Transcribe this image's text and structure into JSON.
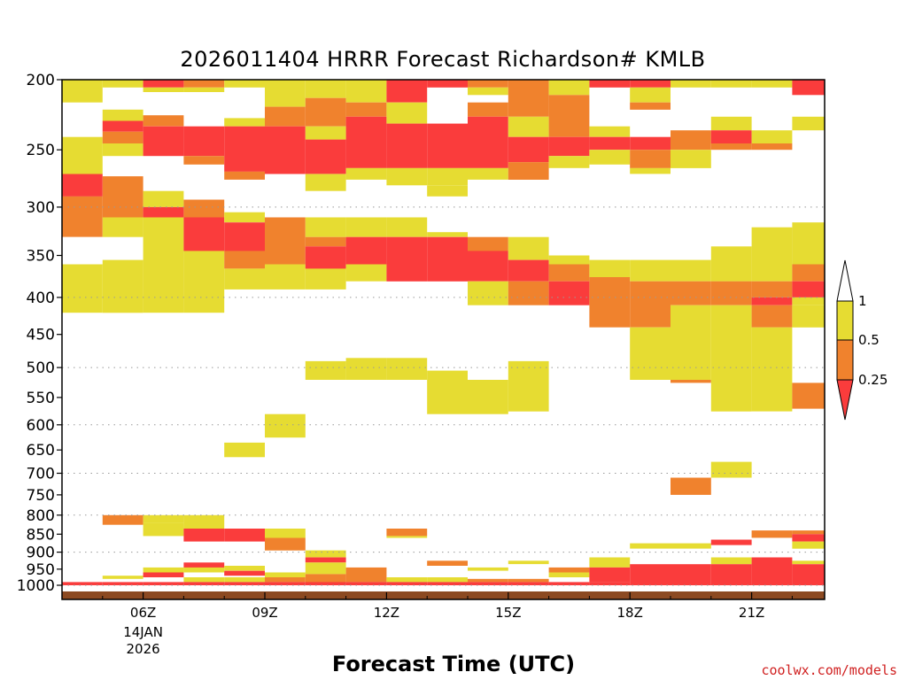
{
  "chart_data": {
    "type": "heatmap",
    "title": "2026011404 HRRR Forecast Richardson# KMLB",
    "xlabel": "Forecast Time (UTC)",
    "ylabel": "",
    "credit": "coolwx.com/models",
    "y_scale": "log-pressure",
    "y_range_hPa": [
      1000,
      200
    ],
    "x_range_hours": [
      4.0,
      22.8
    ],
    "y_ticks": [
      200,
      250,
      300,
      350,
      400,
      450,
      500,
      550,
      600,
      650,
      700,
      750,
      800,
      850,
      900,
      950,
      1000
    ],
    "x_ticks": [
      {
        "hour": 6,
        "label": "06Z",
        "sub1": "14JAN",
        "sub2": "2026"
      },
      {
        "hour": 9,
        "label": "09Z",
        "sub1": "",
        "sub2": ""
      },
      {
        "hour": 12,
        "label": "12Z",
        "sub1": "",
        "sub2": ""
      },
      {
        "hour": 15,
        "label": "15Z",
        "sub1": "",
        "sub2": ""
      },
      {
        "hour": 18,
        "label": "18Z",
        "sub1": "",
        "sub2": ""
      },
      {
        "hour": 21,
        "label": "21Z",
        "sub1": "",
        "sub2": ""
      }
    ],
    "dotted_grid_levels": [
      300,
      400,
      500,
      600,
      700,
      800,
      900,
      1000
    ],
    "legend": {
      "placement": "right",
      "labels": [
        "1",
        "0.5",
        "0.25"
      ],
      "bins": [
        {
          "range": ">1",
          "color": "#ffffff"
        },
        {
          "range": "0.5-1",
          "color": "#e6dc32"
        },
        {
          "range": "0.25-0.5",
          "color": "#f0822d"
        },
        {
          "range": "<0.25",
          "color": "#fa3c3c"
        }
      ]
    },
    "colors": {
      "1": "#e6dc32",
      "2": "#f0822d",
      "3": "#fa3c3c",
      "ground": "#8c4a22"
    },
    "surface_fill_hPa": 1020,
    "columns": [
      {
        "hour": 4.0,
        "cells": [
          [
            200,
            215,
            1
          ],
          [
            240,
            270,
            1
          ],
          [
            270,
            290,
            3
          ],
          [
            290,
            330,
            2
          ],
          [
            360,
            420,
            1
          ],
          [
            990,
            1000,
            3
          ]
        ]
      },
      {
        "hour": 5.0,
        "cells": [
          [
            200,
            205,
            1
          ],
          [
            220,
            228,
            1
          ],
          [
            228,
            236,
            3
          ],
          [
            236,
            245,
            2
          ],
          [
            245,
            255,
            1
          ],
          [
            272,
            310,
            2
          ],
          [
            310,
            330,
            1
          ],
          [
            355,
            420,
            1
          ],
          [
            800,
            825,
            2
          ],
          [
            970,
            980,
            1
          ],
          [
            990,
            1000,
            3
          ]
        ]
      },
      {
        "hour": 6.0,
        "cells": [
          [
            200,
            205,
            3
          ],
          [
            205,
            208,
            1
          ],
          [
            224,
            232,
            2
          ],
          [
            232,
            255,
            3
          ],
          [
            285,
            300,
            1
          ],
          [
            300,
            310,
            3
          ],
          [
            310,
            345,
            1
          ],
          [
            345,
            420,
            1
          ],
          [
            800,
            820,
            1
          ],
          [
            820,
            855,
            1
          ],
          [
            945,
            960,
            1
          ],
          [
            960,
            975,
            3
          ],
          [
            990,
            1000,
            3
          ]
        ]
      },
      {
        "hour": 7.0,
        "cells": [
          [
            200,
            205,
            2
          ],
          [
            205,
            208,
            1
          ],
          [
            232,
            255,
            3
          ],
          [
            255,
            262,
            2
          ],
          [
            293,
            310,
            2
          ],
          [
            310,
            345,
            3
          ],
          [
            345,
            420,
            1
          ],
          [
            800,
            835,
            1
          ],
          [
            835,
            870,
            3
          ],
          [
            930,
            945,
            3
          ],
          [
            945,
            960,
            1
          ],
          [
            975,
            990,
            1
          ],
          [
            990,
            1000,
            3
          ]
        ]
      },
      {
        "hour": 8.0,
        "cells": [
          [
            200,
            205,
            1
          ],
          [
            226,
            232,
            1
          ],
          [
            232,
            268,
            3
          ],
          [
            268,
            275,
            2
          ],
          [
            305,
            315,
            1
          ],
          [
            315,
            345,
            3
          ],
          [
            345,
            365,
            2
          ],
          [
            365,
            390,
            1
          ],
          [
            635,
            665,
            1
          ],
          [
            835,
            870,
            3
          ],
          [
            940,
            955,
            1
          ],
          [
            955,
            970,
            3
          ],
          [
            975,
            990,
            1
          ],
          [
            990,
            1000,
            3
          ]
        ]
      },
      {
        "hour": 9.0,
        "cells": [
          [
            200,
            218,
            1
          ],
          [
            218,
            232,
            2
          ],
          [
            232,
            270,
            3
          ],
          [
            310,
            345,
            2
          ],
          [
            345,
            360,
            2
          ],
          [
            360,
            390,
            1
          ],
          [
            580,
            625,
            1
          ],
          [
            835,
            860,
            1
          ],
          [
            860,
            895,
            2
          ],
          [
            960,
            975,
            1
          ],
          [
            975,
            990,
            2
          ],
          [
            990,
            1000,
            3
          ]
        ]
      },
      {
        "hour": 10.0,
        "cells": [
          [
            200,
            212,
            1
          ],
          [
            212,
            232,
            2
          ],
          [
            232,
            242,
            1
          ],
          [
            242,
            270,
            3
          ],
          [
            270,
            285,
            1
          ],
          [
            310,
            330,
            1
          ],
          [
            330,
            340,
            2
          ],
          [
            340,
            365,
            3
          ],
          [
            365,
            390,
            1
          ],
          [
            490,
            520,
            1
          ],
          [
            895,
            915,
            1
          ],
          [
            915,
            930,
            3
          ],
          [
            930,
            965,
            1
          ],
          [
            965,
            990,
            2
          ],
          [
            990,
            1000,
            3
          ]
        ]
      },
      {
        "hour": 11.0,
        "cells": [
          [
            200,
            215,
            1
          ],
          [
            215,
            225,
            2
          ],
          [
            225,
            265,
            3
          ],
          [
            265,
            275,
            1
          ],
          [
            310,
            330,
            1
          ],
          [
            330,
            360,
            3
          ],
          [
            360,
            380,
            1
          ],
          [
            485,
            520,
            1
          ],
          [
            945,
            990,
            2
          ],
          [
            990,
            1000,
            3
          ]
        ]
      },
      {
        "hour": 12.0,
        "cells": [
          [
            200,
            215,
            3
          ],
          [
            215,
            230,
            1
          ],
          [
            230,
            265,
            3
          ],
          [
            265,
            280,
            1
          ],
          [
            310,
            330,
            1
          ],
          [
            330,
            380,
            3
          ],
          [
            485,
            520,
            1
          ],
          [
            835,
            855,
            2
          ],
          [
            855,
            860,
            1
          ],
          [
            975,
            990,
            1
          ],
          [
            990,
            1000,
            3
          ]
        ]
      },
      {
        "hour": 13.0,
        "cells": [
          [
            200,
            205,
            3
          ],
          [
            230,
            265,
            3
          ],
          [
            265,
            280,
            1
          ],
          [
            280,
            290,
            1
          ],
          [
            325,
            330,
            1
          ],
          [
            330,
            380,
            3
          ],
          [
            505,
            580,
            1
          ],
          [
            925,
            940,
            2
          ],
          [
            975,
            990,
            1
          ],
          [
            990,
            1000,
            3
          ]
        ]
      },
      {
        "hour": 14.0,
        "cells": [
          [
            200,
            205,
            2
          ],
          [
            205,
            210,
            1
          ],
          [
            215,
            225,
            2
          ],
          [
            225,
            265,
            3
          ],
          [
            265,
            275,
            1
          ],
          [
            330,
            345,
            2
          ],
          [
            345,
            380,
            3
          ],
          [
            380,
            410,
            1
          ],
          [
            520,
            580,
            1
          ],
          [
            945,
            955,
            1
          ],
          [
            980,
            990,
            2
          ],
          [
            990,
            1000,
            3
          ]
        ]
      },
      {
        "hour": 15.0,
        "cells": [
          [
            200,
            225,
            2
          ],
          [
            225,
            240,
            1
          ],
          [
            240,
            260,
            3
          ],
          [
            260,
            275,
            2
          ],
          [
            330,
            355,
            1
          ],
          [
            355,
            380,
            3
          ],
          [
            380,
            410,
            2
          ],
          [
            490,
            575,
            1
          ],
          [
            925,
            935,
            1
          ],
          [
            980,
            990,
            2
          ],
          [
            990,
            1000,
            3
          ]
        ]
      },
      {
        "hour": 16.0,
        "cells": [
          [
            200,
            210,
            1
          ],
          [
            210,
            240,
            2
          ],
          [
            240,
            255,
            3
          ],
          [
            255,
            265,
            1
          ],
          [
            350,
            360,
            1
          ],
          [
            360,
            380,
            2
          ],
          [
            380,
            410,
            3
          ],
          [
            945,
            960,
            2
          ],
          [
            960,
            975,
            1
          ],
          [
            990,
            1000,
            3
          ]
        ]
      },
      {
        "hour": 17.0,
        "cells": [
          [
            200,
            205,
            3
          ],
          [
            232,
            240,
            1
          ],
          [
            240,
            250,
            3
          ],
          [
            250,
            262,
            1
          ],
          [
            355,
            375,
            1
          ],
          [
            375,
            440,
            2
          ],
          [
            915,
            945,
            1
          ],
          [
            945,
            990,
            3
          ],
          [
            990,
            1000,
            3
          ]
        ]
      },
      {
        "hour": 18.0,
        "cells": [
          [
            200,
            205,
            3
          ],
          [
            205,
            215,
            1
          ],
          [
            215,
            220,
            2
          ],
          [
            240,
            250,
            3
          ],
          [
            250,
            265,
            2
          ],
          [
            265,
            270,
            1
          ],
          [
            355,
            380,
            1
          ],
          [
            380,
            440,
            2
          ],
          [
            440,
            520,
            1
          ],
          [
            875,
            890,
            1
          ],
          [
            935,
            990,
            3
          ],
          [
            990,
            1000,
            3
          ]
        ]
      },
      {
        "hour": 19.0,
        "cells": [
          [
            200,
            205,
            1
          ],
          [
            235,
            250,
            2
          ],
          [
            250,
            265,
            1
          ],
          [
            355,
            380,
            1
          ],
          [
            380,
            410,
            2
          ],
          [
            410,
            520,
            1
          ],
          [
            520,
            525,
            2
          ],
          [
            710,
            750,
            2
          ],
          [
            875,
            890,
            1
          ],
          [
            935,
            1000,
            3
          ]
        ]
      },
      {
        "hour": 20.0,
        "cells": [
          [
            200,
            205,
            1
          ],
          [
            225,
            235,
            1
          ],
          [
            235,
            245,
            3
          ],
          [
            245,
            250,
            2
          ],
          [
            340,
            380,
            1
          ],
          [
            380,
            410,
            2
          ],
          [
            410,
            575,
            1
          ],
          [
            675,
            710,
            1
          ],
          [
            865,
            880,
            3
          ],
          [
            915,
            935,
            1
          ],
          [
            935,
            1000,
            3
          ]
        ]
      },
      {
        "hour": 21.0,
        "cells": [
          [
            200,
            205,
            1
          ],
          [
            235,
            245,
            1
          ],
          [
            245,
            250,
            2
          ],
          [
            320,
            350,
            1
          ],
          [
            350,
            380,
            1
          ],
          [
            380,
            400,
            2
          ],
          [
            400,
            410,
            3
          ],
          [
            410,
            440,
            2
          ],
          [
            440,
            575,
            1
          ],
          [
            840,
            860,
            2
          ],
          [
            915,
            1000,
            3
          ]
        ]
      },
      {
        "hour": 22.0,
        "cells": [
          [
            200,
            210,
            3
          ],
          [
            225,
            235,
            1
          ],
          [
            315,
            360,
            1
          ],
          [
            360,
            380,
            2
          ],
          [
            380,
            400,
            3
          ],
          [
            400,
            410,
            1
          ],
          [
            410,
            440,
            1
          ],
          [
            525,
            570,
            2
          ],
          [
            840,
            850,
            2
          ],
          [
            850,
            870,
            3
          ],
          [
            870,
            890,
            1
          ],
          [
            925,
            935,
            1
          ],
          [
            935,
            1000,
            3
          ]
        ]
      }
    ]
  }
}
